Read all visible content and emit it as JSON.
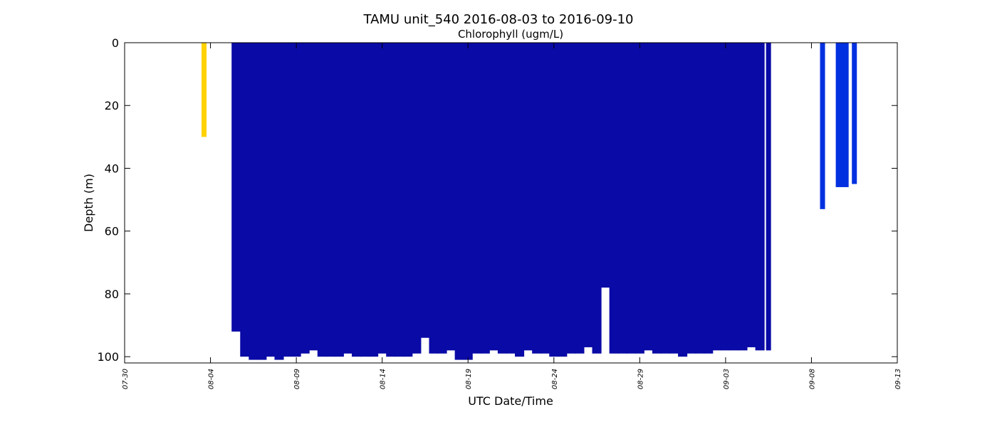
{
  "chart_data": {
    "type": "profile",
    "title": "TAMU unit_540 2016-08-03 to 2016-09-10",
    "subtitle": "Chlorophyll (ugm/L)",
    "x_label": "UTC Date/Time",
    "y_label": "Depth (m)",
    "xlim": [
      "07-30 00:00",
      "09-13 00:00"
    ],
    "xticks": [
      "07-30",
      "08-04",
      "08-09",
      "08-14",
      "08-19",
      "08-24",
      "08-29",
      "09-03",
      "09-08",
      "09-13"
    ],
    "ylim": [
      102,
      0
    ],
    "yticks": [
      0,
      20,
      40,
      60,
      80,
      100
    ],
    "series": [
      {
        "color": "#ffd200",
        "x": [
          "08-03 15:00"
        ],
        "depth": [
          30
        ]
      },
      {
        "color": "#0a0aa6",
        "x": [
          "08-05 12:00",
          "08-06 00:00",
          "08-06 12:00",
          "08-07 00:00",
          "08-07 12:00",
          "08-08 00:00",
          "08-08 12:00",
          "08-09 00:00",
          "08-09 12:00",
          "08-10 00:00",
          "08-10 12:00",
          "08-11 00:00",
          "08-11 12:00",
          "08-12 00:00",
          "08-12 12:00",
          "08-13 00:00",
          "08-13 12:00",
          "08-14 00:00",
          "08-14 12:00",
          "08-15 00:00",
          "08-15 12:00",
          "08-16 00:00",
          "08-16 12:00",
          "08-17 00:00",
          "08-17 12:00",
          "08-18 00:00",
          "08-18 12:00",
          "08-19 00:00",
          "08-19 12:00",
          "08-20 00:00",
          "08-20 12:00",
          "08-21 00:00",
          "08-21 12:00",
          "08-22 00:00",
          "08-22 12:00",
          "08-23 00:00",
          "08-23 12:00",
          "08-24 00:00",
          "08-24 12:00",
          "08-25 00:00",
          "08-25 12:00",
          "08-26 00:00",
          "08-26 12:00",
          "08-27 00:00",
          "08-27 12:00",
          "08-28 00:00",
          "08-28 12:00",
          "08-29 00:00",
          "08-29 12:00",
          "08-30 00:00",
          "08-30 12:00",
          "08-31 00:00",
          "08-31 12:00",
          "09-01 00:00",
          "09-01 12:00",
          "09-02 00:00",
          "09-02 12:00",
          "09-03 00:00",
          "09-03 12:00",
          "09-04 00:00",
          "09-04 12:00",
          "09-05 00:00",
          "09-05 12:00"
        ],
        "depth": [
          92,
          100,
          101,
          101,
          100,
          101,
          100,
          100,
          99,
          98,
          100,
          100,
          100,
          99,
          100,
          100,
          100,
          99,
          100,
          100,
          100,
          99,
          94,
          99,
          99,
          98,
          101,
          101,
          99,
          99,
          98,
          99,
          99,
          100,
          98,
          99,
          99,
          100,
          100,
          99,
          99,
          97,
          99,
          78,
          99,
          99,
          99,
          99,
          98,
          99,
          99,
          99,
          100,
          99,
          99,
          99,
          98,
          98,
          98,
          98,
          97,
          98,
          98
        ]
      },
      {
        "color": "#0030e0",
        "x": [
          "09-08 15:30",
          "09-09 19:00",
          "09-10 12:00"
        ],
        "depth": [
          53,
          46,
          45
        ]
      }
    ]
  }
}
